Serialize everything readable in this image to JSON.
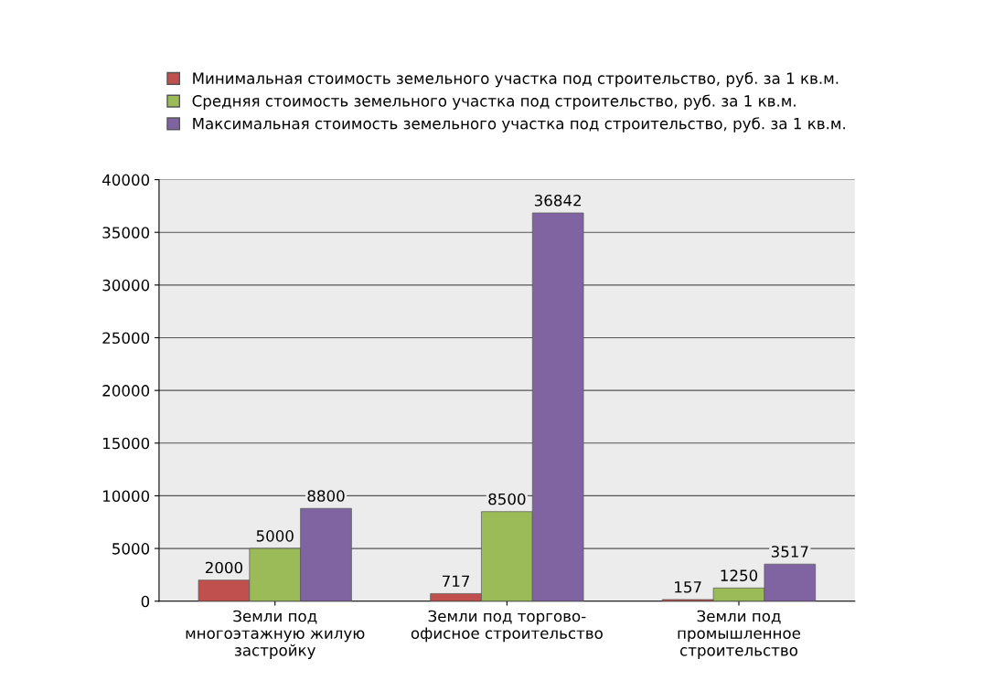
{
  "chart_data": {
    "type": "bar",
    "categories": [
      "Земли под\nмногоэтажную жилую\nзастройку",
      "Земли под торгово-\nофисное строительство",
      "Земли под\nпромышленное\nстроительство"
    ],
    "series": [
      {
        "name": "Минимальная стоимость земельного участка под строительство, руб. за 1 кв.м.",
        "color": "#c0504d",
        "values": [
          2000,
          717,
          157
        ]
      },
      {
        "name": "Средняя стоимость земельного участка под строительство, руб. за 1 кв.м.",
        "color": "#9bbb59",
        "values": [
          5000,
          8500,
          1250
        ]
      },
      {
        "name": "Максимальная стоимость земельного участка под строительство, руб. за 1 кв.м.",
        "color": "#8064a2",
        "values": [
          8800,
          36842,
          3517
        ]
      }
    ],
    "ylim": [
      0,
      40000
    ],
    "yticks": [
      0,
      5000,
      10000,
      15000,
      20000,
      25000,
      30000,
      35000,
      40000
    ],
    "grid": "y",
    "legend": "top",
    "data_labels": true
  }
}
